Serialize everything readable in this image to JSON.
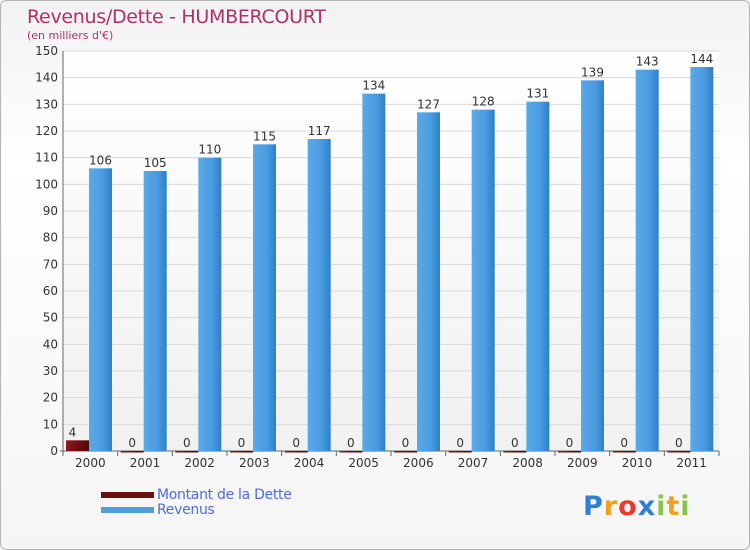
{
  "chart_data": {
    "type": "bar",
    "title": "Revenus/Dette - HUMBERCOURT",
    "subtitle": "(en milliers d'€)",
    "categories": [
      "2000",
      "2001",
      "2002",
      "2003",
      "2004",
      "2005",
      "2006",
      "2007",
      "2008",
      "2009",
      "2010",
      "2011"
    ],
    "series": [
      {
        "name": "Montant de la Dette",
        "color": "#6b0f0f",
        "values": [
          4,
          0,
          0,
          0,
          0,
          0,
          0,
          0,
          0,
          0,
          0,
          0
        ]
      },
      {
        "name": "Revenus",
        "color": "#4d9fe0",
        "values": [
          106,
          105,
          110,
          115,
          117,
          134,
          127,
          128,
          131,
          139,
          143,
          144
        ]
      }
    ],
    "ylim": [
      0,
      150
    ],
    "yticks": [
      0,
      10,
      20,
      30,
      40,
      50,
      60,
      70,
      80,
      90,
      100,
      110,
      120,
      130,
      140,
      150
    ],
    "grid": true,
    "legend": "bottom-left"
  },
  "logo": {
    "letters": [
      "P",
      "r",
      "o",
      "x",
      "i",
      "t",
      "i"
    ],
    "colors": [
      "#2f7fd6",
      "#f0a020",
      "#e83a2e",
      "#2f7fd6",
      "#8bc34a",
      "#f0a020",
      "#8bc34a"
    ]
  }
}
